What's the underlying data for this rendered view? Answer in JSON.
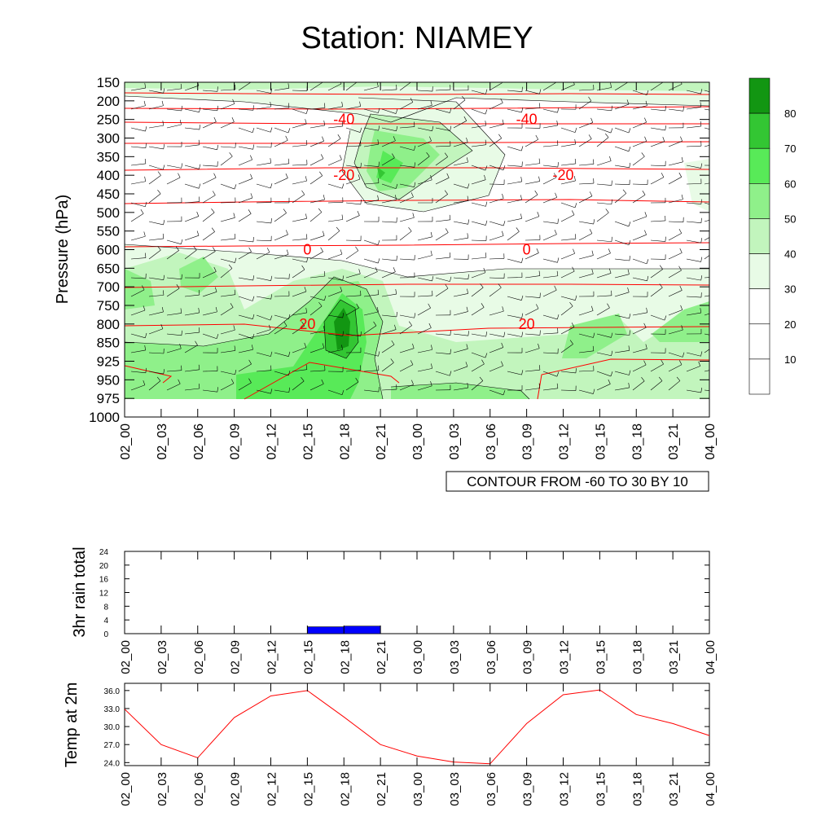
{
  "title": "Station: NIAMEY",
  "time_labels": [
    "02_00",
    "02_03",
    "02_06",
    "02_09",
    "02_12",
    "02_15",
    "02_18",
    "02_21",
    "03_00",
    "03_03",
    "03_06",
    "03_09",
    "03_12",
    "03_15",
    "03_18",
    "03_21",
    "04_00"
  ],
  "chart_data": [
    {
      "type": "heatmap",
      "title": "Station: NIAMEY",
      "ylabel": "Pressure (hPa)",
      "xlabel": "",
      "y_ticks": [
        "150",
        "200",
        "250",
        "300",
        "350",
        "400",
        "450",
        "500",
        "550",
        "600",
        "650",
        "700",
        "750",
        "800",
        "850",
        "925",
        "950",
        "975",
        "1000"
      ],
      "x_ticks": [
        "02_00",
        "02_03",
        "02_06",
        "02_09",
        "02_12",
        "02_15",
        "02_18",
        "02_21",
        "03_00",
        "03_03",
        "03_06",
        "03_09",
        "03_12",
        "03_15",
        "03_18",
        "03_21",
        "04_00"
      ],
      "shading_field": "relative humidity",
      "colorbar_levels": [
        10,
        20,
        30,
        40,
        50,
        60,
        70,
        80
      ],
      "colorbar_colors": [
        "#ffffff",
        "#ffffff",
        "#ffffff",
        "#e8fbe6",
        "#c2f5bd",
        "#8ff08a",
        "#58ea58",
        "#33c633",
        "#129612"
      ],
      "temperature_contour_labels": [
        {
          "value": "-40",
          "x": "02_18",
          "p": 250
        },
        {
          "value": "-40",
          "x": "03_09",
          "p": 250
        },
        {
          "value": "-20",
          "x": "02_18",
          "p": 400
        },
        {
          "value": "-20",
          "x": "03_12",
          "p": 400
        },
        {
          "value": "0",
          "x": "02_15",
          "p": 600
        },
        {
          "value": "0",
          "x": "03_09",
          "p": 600
        },
        {
          "value": "20",
          "x": "02_15",
          "p": 800
        },
        {
          "value": "20",
          "x": "03_09",
          "p": 800
        }
      ],
      "note": "CONTOUR FROM -60 TO 30 BY 10"
    },
    {
      "type": "bar",
      "ylabel": "3hr rain total",
      "ylim": [
        0,
        24
      ],
      "y_ticks": [
        "0",
        "4",
        "8",
        "12",
        "16",
        "20",
        "24"
      ],
      "categories": [
        "02_00",
        "02_03",
        "02_06",
        "02_09",
        "02_12",
        "02_15",
        "02_18",
        "02_21",
        "03_00",
        "03_03",
        "03_06",
        "03_09",
        "03_12",
        "03_15",
        "03_18",
        "03_21",
        "04_00"
      ],
      "values": [
        0,
        0,
        0,
        0,
        0,
        0,
        2,
        2.2,
        0,
        0,
        0,
        0,
        0,
        0,
        0,
        0,
        0
      ],
      "bar_color": "#0000ff"
    },
    {
      "type": "line",
      "ylabel": "Temp at 2m",
      "ylim": [
        23.5,
        37.2
      ],
      "y_ticks": [
        "24.0",
        "27.0",
        "30.0",
        "33.0",
        "36.0"
      ],
      "x": [
        "02_00",
        "02_03",
        "02_06",
        "02_09",
        "02_12",
        "02_15",
        "02_18",
        "02_21",
        "03_00",
        "03_03",
        "03_06",
        "03_09",
        "03_12",
        "03_15",
        "03_18",
        "03_21",
        "04_00"
      ],
      "values": [
        32.9,
        27.0,
        24.8,
        31.5,
        35.1,
        36.0,
        31.6,
        27.0,
        25.1,
        24.1,
        23.8,
        30.5,
        35.3,
        36.1,
        32.0,
        30.5,
        28.5
      ],
      "line_color": "#ff0000"
    }
  ]
}
